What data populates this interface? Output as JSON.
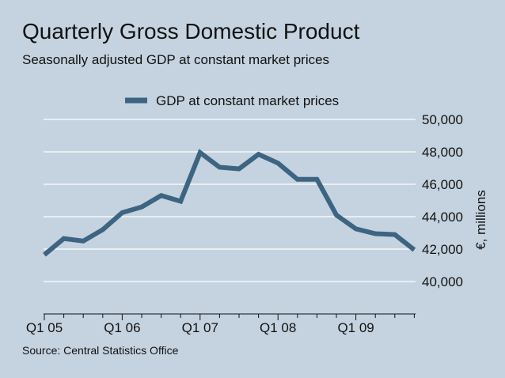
{
  "chart_data": {
    "type": "line",
    "title": "Quarterly Gross Domestic Product",
    "subtitle": "Seasonally adjusted GDP at constant market prices",
    "source": "Source: Central Statistics Office",
    "xlabel": "",
    "ylabel": "€, millions",
    "ylim": [
      38000,
      50000
    ],
    "y_ticks": [
      40000,
      42000,
      44000,
      46000,
      48000,
      50000
    ],
    "y_tick_labels": [
      "40,000",
      "42,000",
      "44,000",
      "46,000",
      "48,000",
      "50,000"
    ],
    "x_tick_labels": [
      "Q1 05",
      "Q1 06",
      "Q1 07",
      "Q1 08",
      "Q1 09"
    ],
    "x_tick_positions": [
      0,
      4,
      8,
      12,
      16
    ],
    "categories": [
      "Q1 05",
      "Q2 05",
      "Q3 05",
      "Q4 05",
      "Q1 06",
      "Q2 06",
      "Q3 06",
      "Q4 06",
      "Q1 07",
      "Q2 07",
      "Q3 07",
      "Q4 07",
      "Q1 08",
      "Q2 08",
      "Q3 08",
      "Q4 08",
      "Q1 09",
      "Q2 09",
      "Q3 09",
      "Q4 09"
    ],
    "series": [
      {
        "name": "GDP at constant market prices",
        "color": "#3d6480",
        "values": [
          41650,
          42650,
          42500,
          43200,
          44250,
          44600,
          45300,
          44950,
          47950,
          47050,
          46950,
          47850,
          47300,
          46300,
          46300,
          44100,
          43250,
          42950,
          42900,
          41950
        ]
      }
    ],
    "legend_position": "top",
    "grid": true
  },
  "colors": {
    "background": "#c5d3e0",
    "line": "#3d6480",
    "grid": "#ffffff"
  }
}
